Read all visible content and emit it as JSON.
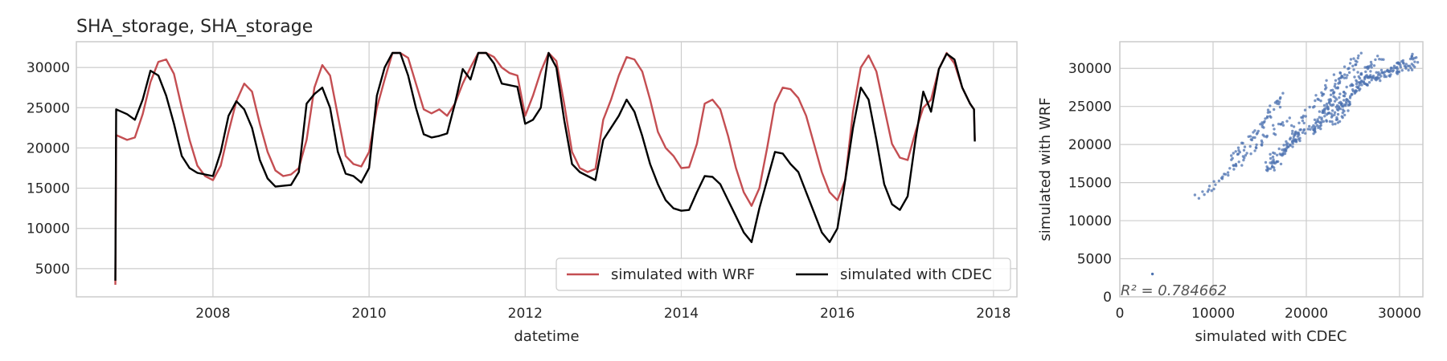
{
  "chart_data": [
    {
      "type": "line",
      "title": "SHA_storage, SHA_storage",
      "xlabel": "datetime",
      "ylabel": "",
      "xlim": [
        2006.25,
        2018.3
      ],
      "ylim": [
        1500,
        33200
      ],
      "xticks": [
        2008,
        2010,
        2012,
        2014,
        2016,
        2018
      ],
      "xtick_labels": [
        "2008",
        "2010",
        "2012",
        "2014",
        "2016",
        "2018"
      ],
      "yticks": [
        5000,
        10000,
        15000,
        20000,
        25000,
        30000
      ],
      "ytick_labels": [
        "5000",
        "10000",
        "15000",
        "20000",
        "25000",
        "30000"
      ],
      "grid": true,
      "legend": {
        "placement": "lower-right",
        "ncol": 2
      },
      "series": [
        {
          "name": "simulated with WRF",
          "color": "#c44e52",
          "points": [
            [
              2006.75,
              3000
            ],
            [
              2006.76,
              21600
            ],
            [
              2006.9,
              21000
            ],
            [
              2007.0,
              21300
            ],
            [
              2007.1,
              24200
            ],
            [
              2007.2,
              28200
            ],
            [
              2007.3,
              30700
            ],
            [
              2007.4,
              31000
            ],
            [
              2007.5,
              29200
            ],
            [
              2007.6,
              25000
            ],
            [
              2007.7,
              21000
            ],
            [
              2007.8,
              17800
            ],
            [
              2007.9,
              16500
            ],
            [
              2008.0,
              16000
            ],
            [
              2008.1,
              17800
            ],
            [
              2008.2,
              22000
            ],
            [
              2008.3,
              25800
            ],
            [
              2008.4,
              28000
            ],
            [
              2008.5,
              27000
            ],
            [
              2008.6,
              23000
            ],
            [
              2008.7,
              19500
            ],
            [
              2008.8,
              17200
            ],
            [
              2008.9,
              16500
            ],
            [
              2009.0,
              16700
            ],
            [
              2009.1,
              17500
            ],
            [
              2009.2,
              21000
            ],
            [
              2009.3,
              27500
            ],
            [
              2009.4,
              30300
            ],
            [
              2009.5,
              29000
            ],
            [
              2009.6,
              24000
            ],
            [
              2009.7,
              19000
            ],
            [
              2009.8,
              18000
            ],
            [
              2009.9,
              17700
            ],
            [
              2010.0,
              19500
            ],
            [
              2010.1,
              25000
            ],
            [
              2010.2,
              28500
            ],
            [
              2010.3,
              31800
            ],
            [
              2010.4,
              31800
            ],
            [
              2010.5,
              31200
            ],
            [
              2010.6,
              28000
            ],
            [
              2010.7,
              24800
            ],
            [
              2010.8,
              24300
            ],
            [
              2010.9,
              24800
            ],
            [
              2011.0,
              24000
            ],
            [
              2011.1,
              25500
            ],
            [
              2011.2,
              28000
            ],
            [
              2011.3,
              30000
            ],
            [
              2011.4,
              31800
            ],
            [
              2011.5,
              31800
            ],
            [
              2011.6,
              31300
            ],
            [
              2011.7,
              30000
            ],
            [
              2011.8,
              29300
            ],
            [
              2011.9,
              29000
            ],
            [
              2012.0,
              24000
            ],
            [
              2012.1,
              26500
            ],
            [
              2012.2,
              29500
            ],
            [
              2012.3,
              31800
            ],
            [
              2012.4,
              30800
            ],
            [
              2012.5,
              25500
            ],
            [
              2012.6,
              19500
            ],
            [
              2012.7,
              17500
            ],
            [
              2012.8,
              17000
            ],
            [
              2012.9,
              17400
            ],
            [
              2013.0,
              23500
            ],
            [
              2013.1,
              26000
            ],
            [
              2013.2,
              29000
            ],
            [
              2013.3,
              31300
            ],
            [
              2013.4,
              31000
            ],
            [
              2013.5,
              29500
            ],
            [
              2013.6,
              26000
            ],
            [
              2013.7,
              22000
            ],
            [
              2013.8,
              20000
            ],
            [
              2013.9,
              19000
            ],
            [
              2014.0,
              17500
            ],
            [
              2014.1,
              17600
            ],
            [
              2014.2,
              20500
            ],
            [
              2014.3,
              25500
            ],
            [
              2014.4,
              26000
            ],
            [
              2014.5,
              24800
            ],
            [
              2014.6,
              21500
            ],
            [
              2014.7,
              17500
            ],
            [
              2014.8,
              14500
            ],
            [
              2014.9,
              12800
            ],
            [
              2015.0,
              15000
            ],
            [
              2015.1,
              20000
            ],
            [
              2015.2,
              25500
            ],
            [
              2015.3,
              27500
            ],
            [
              2015.4,
              27300
            ],
            [
              2015.5,
              26200
            ],
            [
              2015.6,
              24000
            ],
            [
              2015.7,
              20500
            ],
            [
              2015.8,
              17000
            ],
            [
              2015.9,
              14500
            ],
            [
              2016.0,
              13500
            ],
            [
              2016.1,
              16000
            ],
            [
              2016.2,
              24500
            ],
            [
              2016.3,
              30000
            ],
            [
              2016.4,
              31500
            ],
            [
              2016.5,
              29500
            ],
            [
              2016.6,
              25000
            ],
            [
              2016.7,
              20500
            ],
            [
              2016.8,
              18800
            ],
            [
              2016.9,
              18500
            ],
            [
              2017.0,
              22000
            ],
            [
              2017.1,
              25000
            ],
            [
              2017.2,
              26000
            ],
            [
              2017.3,
              29800
            ],
            [
              2017.4,
              31800
            ],
            [
              2017.5,
              30500
            ],
            [
              2017.6,
              27500
            ],
            [
              2017.7,
              25500
            ],
            [
              2017.75,
              24800
            ],
            [
              2017.76,
              21000
            ]
          ]
        },
        {
          "name": "simulated with CDEC",
          "color": "#000000",
          "points": [
            [
              2006.75,
              3500
            ],
            [
              2006.76,
              24800
            ],
            [
              2006.9,
              24200
            ],
            [
              2007.0,
              23500
            ],
            [
              2007.1,
              26000
            ],
            [
              2007.2,
              29600
            ],
            [
              2007.3,
              29000
            ],
            [
              2007.4,
              26500
            ],
            [
              2007.5,
              23000
            ],
            [
              2007.6,
              19000
            ],
            [
              2007.7,
              17500
            ],
            [
              2007.8,
              16900
            ],
            [
              2007.9,
              16700
            ],
            [
              2008.0,
              16500
            ],
            [
              2008.1,
              19500
            ],
            [
              2008.2,
              24000
            ],
            [
              2008.3,
              25800
            ],
            [
              2008.4,
              24800
            ],
            [
              2008.5,
              22500
            ],
            [
              2008.6,
              18500
            ],
            [
              2008.7,
              16200
            ],
            [
              2008.8,
              15200
            ],
            [
              2008.9,
              15300
            ],
            [
              2009.0,
              15400
            ],
            [
              2009.1,
              17000
            ],
            [
              2009.2,
              25500
            ],
            [
              2009.3,
              26700
            ],
            [
              2009.4,
              27500
            ],
            [
              2009.5,
              25000
            ],
            [
              2009.6,
              19500
            ],
            [
              2009.7,
              16800
            ],
            [
              2009.8,
              16500
            ],
            [
              2009.9,
              15700
            ],
            [
              2010.0,
              17500
            ],
            [
              2010.1,
              26500
            ],
            [
              2010.2,
              30000
            ],
            [
              2010.3,
              31800
            ],
            [
              2010.4,
              31800
            ],
            [
              2010.5,
              29000
            ],
            [
              2010.6,
              25000
            ],
            [
              2010.7,
              21700
            ],
            [
              2010.8,
              21300
            ],
            [
              2010.9,
              21500
            ],
            [
              2011.0,
              21800
            ],
            [
              2011.1,
              25500
            ],
            [
              2011.2,
              29800
            ],
            [
              2011.3,
              28500
            ],
            [
              2011.4,
              31800
            ],
            [
              2011.5,
              31800
            ],
            [
              2011.6,
              30500
            ],
            [
              2011.7,
              28000
            ],
            [
              2011.8,
              27800
            ],
            [
              2011.9,
              27600
            ],
            [
              2012.0,
              23000
            ],
            [
              2012.1,
              23500
            ],
            [
              2012.2,
              25000
            ],
            [
              2012.3,
              31800
            ],
            [
              2012.4,
              30000
            ],
            [
              2012.5,
              23500
            ],
            [
              2012.6,
              18000
            ],
            [
              2012.7,
              17000
            ],
            [
              2012.8,
              16500
            ],
            [
              2012.9,
              16000
            ],
            [
              2013.0,
              21000
            ],
            [
              2013.1,
              22500
            ],
            [
              2013.2,
              24000
            ],
            [
              2013.3,
              26000
            ],
            [
              2013.4,
              24500
            ],
            [
              2013.5,
              21500
            ],
            [
              2013.6,
              18000
            ],
            [
              2013.7,
              15500
            ],
            [
              2013.8,
              13500
            ],
            [
              2013.9,
              12500
            ],
            [
              2014.0,
              12200
            ],
            [
              2014.1,
              12300
            ],
            [
              2014.2,
              14500
            ],
            [
              2014.3,
              16500
            ],
            [
              2014.4,
              16400
            ],
            [
              2014.5,
              15500
            ],
            [
              2014.6,
              13500
            ],
            [
              2014.7,
              11500
            ],
            [
              2014.8,
              9500
            ],
            [
              2014.9,
              8300
            ],
            [
              2015.0,
              12500
            ],
            [
              2015.1,
              16000
            ],
            [
              2015.2,
              19500
            ],
            [
              2015.3,
              19300
            ],
            [
              2015.4,
              18000
            ],
            [
              2015.5,
              17000
            ],
            [
              2015.6,
              14500
            ],
            [
              2015.7,
              12000
            ],
            [
              2015.8,
              9500
            ],
            [
              2015.9,
              8300
            ],
            [
              2016.0,
              10000
            ],
            [
              2016.1,
              16000
            ],
            [
              2016.2,
              22500
            ],
            [
              2016.3,
              27500
            ],
            [
              2016.4,
              26000
            ],
            [
              2016.5,
              21000
            ],
            [
              2016.6,
              15500
            ],
            [
              2016.7,
              13000
            ],
            [
              2016.8,
              12300
            ],
            [
              2016.9,
              14000
            ],
            [
              2017.0,
              21000
            ],
            [
              2017.1,
              27000
            ],
            [
              2017.2,
              24500
            ],
            [
              2017.3,
              29800
            ],
            [
              2017.4,
              31700
            ],
            [
              2017.5,
              31000
            ],
            [
              2017.6,
              27500
            ],
            [
              2017.7,
              25500
            ],
            [
              2017.75,
              24800
            ],
            [
              2017.76,
              20800
            ]
          ]
        }
      ]
    },
    {
      "type": "scatter",
      "title": "",
      "xlabel": "simulated with CDEC",
      "ylabel": "simulated with WRF",
      "xlim": [
        0,
        32500
      ],
      "ylim": [
        0,
        33500
      ],
      "xticks": [
        0,
        10000,
        20000,
        30000
      ],
      "xtick_labels": [
        "0",
        "10000",
        "20000",
        "30000"
      ],
      "yticks": [
        0,
        5000,
        10000,
        15000,
        20000,
        25000,
        30000
      ],
      "ytick_labels": [
        "0",
        "5000",
        "10000",
        "15000",
        "20000",
        "25000",
        "30000"
      ],
      "grid": true,
      "color": "#4c72b0",
      "annotation": "R² = 0.784662",
      "outlier": [
        3500,
        3000
      ],
      "clusters": [
        {
          "from": [
            8500,
            13000
          ],
          "to": [
            18000,
            23500
          ]
        },
        {
          "from": [
            12000,
            17500
          ],
          "to": [
            17500,
            26500
          ]
        },
        {
          "from": [
            16000,
            16500
          ],
          "to": [
            19500,
            22000
          ]
        },
        {
          "from": [
            15500,
            17000
          ],
          "to": [
            23500,
            29500
          ]
        },
        {
          "from": [
            18500,
            20000
          ],
          "to": [
            28000,
            31800
          ]
        },
        {
          "from": [
            21500,
            24000
          ],
          "to": [
            25500,
            31800
          ]
        },
        {
          "from": [
            23000,
            22500
          ],
          "to": [
            27000,
            30500
          ]
        },
        {
          "from": [
            25000,
            27000
          ],
          "to": [
            31800,
            31800
          ]
        },
        {
          "from": [
            26000,
            28500
          ],
          "to": [
            31800,
            30500
          ]
        },
        {
          "from": [
            20500,
            21500
          ],
          "to": [
            24500,
            26000
          ]
        }
      ]
    }
  ]
}
